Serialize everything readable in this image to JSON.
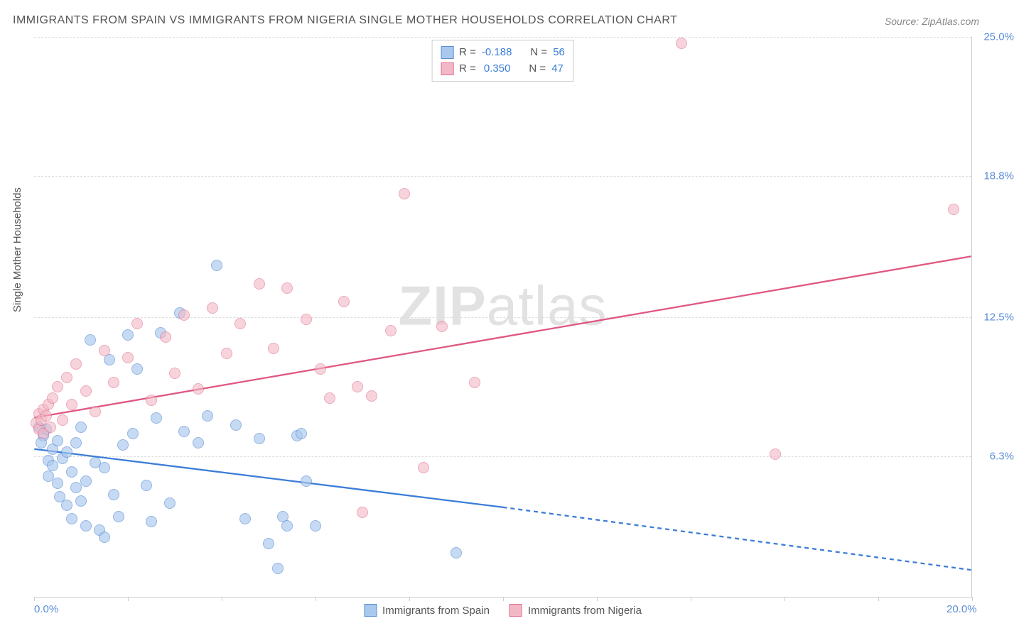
{
  "title": "IMMIGRANTS FROM SPAIN VS IMMIGRANTS FROM NIGERIA SINGLE MOTHER HOUSEHOLDS CORRELATION CHART",
  "source": "Source: ZipAtlas.com",
  "watermark_a": "ZIP",
  "watermark_b": "atlas",
  "y_axis_label": "Single Mother Households",
  "chart": {
    "type": "scatter",
    "xlim": [
      0,
      20
    ],
    "ylim": [
      0,
      25
    ],
    "x_ticks": [
      0,
      2,
      4,
      6,
      8,
      10,
      12,
      14,
      16,
      18,
      20
    ],
    "x_tick_labels": {
      "0": "0.0%",
      "20": "20.0%"
    },
    "y_ticks": [
      6.3,
      12.5,
      18.8,
      25.0
    ],
    "y_tick_labels": [
      "6.3%",
      "12.5%",
      "18.8%",
      "25.0%"
    ],
    "background_color": "#ffffff",
    "grid_color": "#dddddd",
    "axis_color": "#cccccc",
    "title_color": "#555555",
    "tick_label_color": "#5b8dd6",
    "point_radius": 8,
    "series": [
      {
        "name": "Immigrants from Spain",
        "fill": "#a9c8ee",
        "stroke": "#5b8dd6",
        "fill_opacity": 0.65,
        "r_label": "R =",
        "r_value": "-0.188",
        "n_label": "N =",
        "n_value": "56",
        "trend": {
          "x1": 0,
          "y1": 6.6,
          "x2_solid": 10,
          "y2_solid": 4.0,
          "x2": 20,
          "y2": 1.2,
          "stroke": "#3b7dd8",
          "dash": "6 5",
          "width": 2.3
        },
        "points": [
          [
            0.1,
            7.6
          ],
          [
            0.2,
            7.2
          ],
          [
            0.15,
            6.9
          ],
          [
            0.25,
            7.5
          ],
          [
            0.3,
            6.1
          ],
          [
            0.3,
            5.4
          ],
          [
            0.4,
            6.6
          ],
          [
            0.4,
            5.9
          ],
          [
            0.5,
            7.0
          ],
          [
            0.5,
            5.1
          ],
          [
            0.55,
            4.5
          ],
          [
            0.6,
            6.2
          ],
          [
            0.7,
            6.5
          ],
          [
            0.7,
            4.1
          ],
          [
            0.8,
            5.6
          ],
          [
            0.8,
            3.5
          ],
          [
            0.9,
            4.9
          ],
          [
            0.9,
            6.9
          ],
          [
            1.0,
            4.3
          ],
          [
            1.0,
            7.6
          ],
          [
            1.1,
            5.2
          ],
          [
            1.1,
            3.2
          ],
          [
            1.2,
            11.5
          ],
          [
            1.3,
            6.0
          ],
          [
            1.4,
            3.0
          ],
          [
            1.5,
            2.7
          ],
          [
            1.5,
            5.8
          ],
          [
            1.6,
            10.6
          ],
          [
            1.7,
            4.6
          ],
          [
            1.8,
            3.6
          ],
          [
            1.9,
            6.8
          ],
          [
            2.0,
            11.7
          ],
          [
            2.1,
            7.3
          ],
          [
            2.2,
            10.2
          ],
          [
            2.4,
            5.0
          ],
          [
            2.5,
            3.4
          ],
          [
            2.6,
            8.0
          ],
          [
            2.7,
            11.8
          ],
          [
            2.9,
            4.2
          ],
          [
            3.1,
            12.7
          ],
          [
            3.2,
            7.4
          ],
          [
            3.5,
            6.9
          ],
          [
            3.7,
            8.1
          ],
          [
            3.9,
            14.8
          ],
          [
            4.3,
            7.7
          ],
          [
            4.5,
            3.5
          ],
          [
            4.8,
            7.1
          ],
          [
            5.0,
            2.4
          ],
          [
            5.2,
            1.3
          ],
          [
            5.3,
            3.6
          ],
          [
            5.4,
            3.2
          ],
          [
            5.6,
            7.2
          ],
          [
            5.8,
            5.2
          ],
          [
            5.7,
            7.3
          ],
          [
            6.0,
            3.2
          ],
          [
            9.0,
            2.0
          ]
        ]
      },
      {
        "name": "Immigrants from Nigeria",
        "fill": "#f2b8c6",
        "stroke": "#e26f8f",
        "fill_opacity": 0.6,
        "r_label": "R =",
        "r_value": "0.350",
        "n_label": "N =",
        "n_value": "47",
        "trend": {
          "x1": 0,
          "y1": 8.0,
          "x2_solid": 20,
          "y2_solid": 15.2,
          "x2": 20,
          "y2": 15.2,
          "stroke": "#e05780",
          "dash": "",
          "width": 2.3
        },
        "points": [
          [
            0.05,
            7.8
          ],
          [
            0.1,
            8.2
          ],
          [
            0.1,
            7.5
          ],
          [
            0.15,
            7.9
          ],
          [
            0.2,
            8.4
          ],
          [
            0.2,
            7.3
          ],
          [
            0.25,
            8.1
          ],
          [
            0.3,
            8.6
          ],
          [
            0.35,
            7.6
          ],
          [
            0.4,
            8.9
          ],
          [
            0.5,
            9.4
          ],
          [
            0.6,
            7.9
          ],
          [
            0.7,
            9.8
          ],
          [
            0.8,
            8.6
          ],
          [
            0.9,
            10.4
          ],
          [
            1.1,
            9.2
          ],
          [
            1.3,
            8.3
          ],
          [
            1.5,
            11.0
          ],
          [
            1.7,
            9.6
          ],
          [
            2.0,
            10.7
          ],
          [
            2.2,
            12.2
          ],
          [
            2.5,
            8.8
          ],
          [
            2.8,
            11.6
          ],
          [
            3.0,
            10.0
          ],
          [
            3.2,
            12.6
          ],
          [
            3.5,
            9.3
          ],
          [
            3.8,
            12.9
          ],
          [
            4.1,
            10.9
          ],
          [
            4.4,
            12.2
          ],
          [
            4.8,
            14.0
          ],
          [
            5.1,
            11.1
          ],
          [
            5.4,
            13.8
          ],
          [
            5.8,
            12.4
          ],
          [
            6.1,
            10.2
          ],
          [
            6.3,
            8.9
          ],
          [
            6.6,
            13.2
          ],
          [
            6.9,
            9.4
          ],
          [
            7.2,
            9.0
          ],
          [
            7.6,
            11.9
          ],
          [
            7.9,
            18.0
          ],
          [
            8.3,
            5.8
          ],
          [
            8.7,
            12.1
          ],
          [
            9.4,
            9.6
          ],
          [
            7.0,
            3.8
          ],
          [
            13.8,
            24.7
          ],
          [
            15.8,
            6.4
          ],
          [
            19.6,
            17.3
          ]
        ]
      }
    ]
  }
}
